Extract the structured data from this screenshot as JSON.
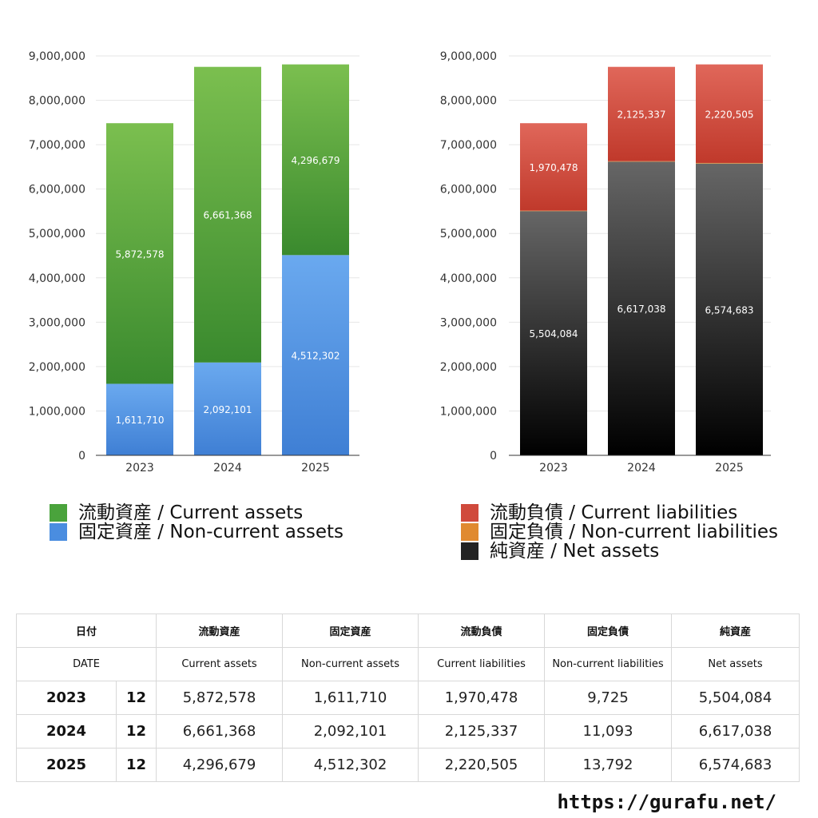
{
  "chart_data": [
    {
      "type": "bar",
      "stacked": true,
      "categories": [
        "2023",
        "2024",
        "2025"
      ],
      "ylim": [
        0,
        9000000
      ],
      "yticks": [
        "0",
        "1,000,000",
        "2,000,000",
        "3,000,000",
        "4,000,000",
        "5,000,000",
        "6,000,000",
        "7,000,000",
        "8,000,000",
        "9,000,000"
      ],
      "grid": true,
      "legend_position": "bottom",
      "series": [
        {
          "name": "固定資産 / Non-current assets",
          "values": [
            1611710,
            2092101,
            4512302
          ],
          "labels": [
            "1,611,710",
            "2,092,101",
            "4,512,302"
          ],
          "color": "#3f7fd4",
          "color_top": "#6aa9ef",
          "label_color": "#ffffff"
        },
        {
          "name": "流動資産 / Current assets",
          "values": [
            5872578,
            6661368,
            4296679
          ],
          "labels": [
            "5,872,578",
            "6,661,368",
            "4,296,679"
          ],
          "color": "#3a8a2e",
          "color_top": "#7bbf4f",
          "label_color": "#ffffff"
        }
      ]
    },
    {
      "type": "bar",
      "stacked": true,
      "categories": [
        "2023",
        "2024",
        "2025"
      ],
      "ylim": [
        0,
        9000000
      ],
      "yticks": [
        "0",
        "1,000,000",
        "2,000,000",
        "3,000,000",
        "4,000,000",
        "5,000,000",
        "6,000,000",
        "7,000,000",
        "8,000,000",
        "9,000,000"
      ],
      "grid": true,
      "legend_position": "bottom",
      "series": [
        {
          "name": "純資産 / Net assets",
          "values": [
            5504084,
            6617038,
            6574683
          ],
          "labels": [
            "5,504,084",
            "6,617,038",
            "6,574,683"
          ],
          "color": "#000000",
          "color_top": "#666666",
          "label_color": "#ffffff"
        },
        {
          "name": "固定負債 / Non-current liabilities",
          "values": [
            9725,
            11093,
            13792
          ],
          "labels": [
            "9,725",
            "11,093",
            "13,792"
          ],
          "color": "#d9822b",
          "color_top": "#f0a050",
          "label_color": "#ffffff"
        },
        {
          "name": "流動負債 / Current liabilities",
          "values": [
            1970478,
            2125337,
            2220505
          ],
          "labels": [
            "1,970,478",
            "2,125,337",
            "2,220,505"
          ],
          "color": "#c0392b",
          "color_top": "#e0675a",
          "label_color": "#ffffff"
        }
      ]
    }
  ],
  "legend_left": [
    {
      "label": "流動資産 / Current assets",
      "color": "#4aa33c"
    },
    {
      "label": "固定資産 / Non-current assets",
      "color": "#4a8de0"
    }
  ],
  "legend_right": [
    {
      "label": "流動負債 / Current liabilities",
      "color": "#d04a3c"
    },
    {
      "label": "固定負債 / Non-current liabilities",
      "color": "#e08a30"
    },
    {
      "label": "純資産 / Net assets",
      "color": "#222222"
    }
  ],
  "table": {
    "header_jp": {
      "date": "日付",
      "c1": "流動資産",
      "c2": "固定資産",
      "c3": "流動負債",
      "c4": "固定負債",
      "c5": "純資産"
    },
    "header_en": {
      "date": "DATE",
      "c1": "Current assets",
      "c2": "Non-current assets",
      "c3": "Current liabilities",
      "c4": "Non-current liabilities",
      "c5": "Net assets"
    },
    "rows": [
      {
        "year": "2023",
        "month": "12",
        "c1": "5,872,578",
        "c2": "1,611,710",
        "c3": "1,970,478",
        "c4": "9,725",
        "c5": "5,504,084"
      },
      {
        "year": "2024",
        "month": "12",
        "c1": "6,661,368",
        "c2": "2,092,101",
        "c3": "2,125,337",
        "c4": "11,093",
        "c5": "6,617,038"
      },
      {
        "year": "2025",
        "month": "12",
        "c1": "4,296,679",
        "c2": "4,512,302",
        "c3": "2,220,505",
        "c4": "13,792",
        "c5": "6,574,683"
      }
    ]
  },
  "footer": {
    "url": "https://gurafu.net/"
  }
}
